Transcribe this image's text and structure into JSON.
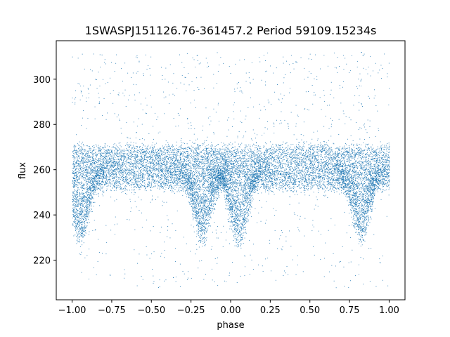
{
  "chart_data": {
    "type": "scatter",
    "title": "1SWASPJ151126.76-361457.2 Period 59109.15234s",
    "xlabel": "phase",
    "ylabel": "flux",
    "xlim": [
      -1.1,
      1.1
    ],
    "ylim": [
      202.5,
      317.0
    ],
    "xticks": [
      -1.0,
      -0.75,
      -0.5,
      -0.25,
      0.0,
      0.25,
      0.5,
      0.75,
      1.0
    ],
    "xtick_labels": [
      "−1.00",
      "−0.75",
      "−0.50",
      "−0.25",
      "0.00",
      "0.25",
      "0.50",
      "0.75",
      "1.00"
    ],
    "yticks": [
      220,
      240,
      260,
      280,
      300
    ],
    "ytick_labels": [
      "220",
      "240",
      "260",
      "280",
      "300"
    ],
    "grid": false,
    "legend": "none",
    "marker_color": "#1f77b4",
    "band": {
      "flux_center": 261,
      "flux_halfwidth": 9
    },
    "dips": [
      {
        "phase": -0.95,
        "depth": 28
      },
      {
        "phase": -0.18,
        "depth": 28
      },
      {
        "phase": 0.05,
        "depth": 30
      },
      {
        "phase": 0.82,
        "depth": 28
      }
    ],
    "phase_range": [
      -1.0,
      1.0
    ],
    "flux_outlier_range": [
      208,
      312
    ]
  }
}
